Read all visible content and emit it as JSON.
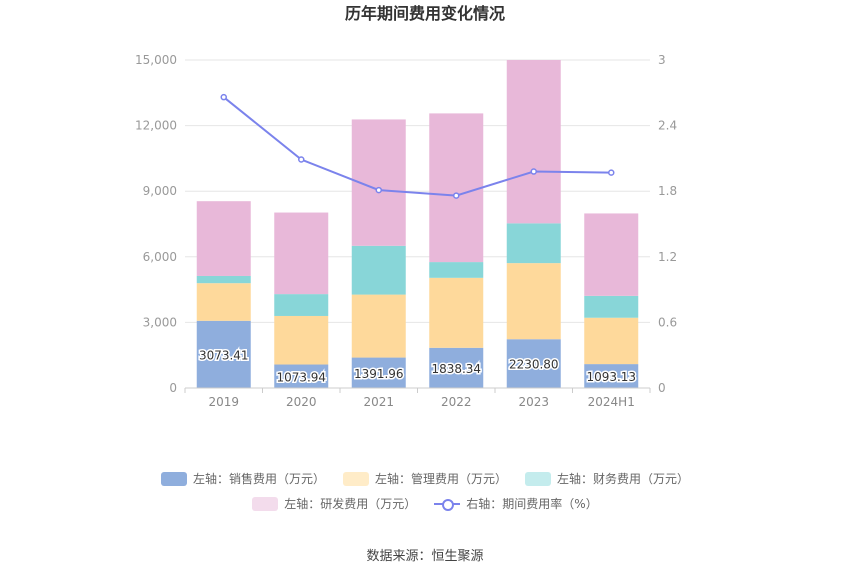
{
  "chart_data": {
    "type": "bar",
    "title": "历年期间费用变化情况",
    "categories": [
      "2019",
      "2020",
      "2021",
      "2022",
      "2023",
      "2024H1"
    ],
    "series": [
      {
        "name": "左轴：销售费用（万元）",
        "axis": "left",
        "kind": "bar",
        "color": "#8faedd",
        "values": [
          3073.41,
          1073.94,
          1391.96,
          1838.34,
          2230.8,
          1093.13
        ],
        "labels": [
          "3073.41",
          "1073.94",
          "1391.96",
          "1838.34",
          "2230.80",
          "1093.13"
        ]
      },
      {
        "name": "左轴：管理费用（万元）",
        "axis": "left",
        "kind": "bar",
        "color": "#fed99b",
        "values": [
          1720,
          2220,
          2880,
          3200,
          3480,
          2120
        ]
      },
      {
        "name": "左轴：财务费用（万元）",
        "axis": "left",
        "kind": "bar",
        "color": "#88d6d8",
        "values": [
          330,
          1000,
          2230,
          720,
          1820,
          1000
        ]
      },
      {
        "name": "左轴：研发费用（万元）",
        "axis": "left",
        "kind": "bar",
        "color": "#e8b8d9",
        "values": [
          3420,
          3730,
          5780,
          6800,
          7470,
          3770
        ]
      },
      {
        "name": "右轴：期间费用率（%）",
        "axis": "right",
        "kind": "line",
        "color": "#7b83ec",
        "values": [
          2.66,
          2.09,
          1.81,
          1.76,
          1.98,
          1.97
        ]
      }
    ],
    "left_axis": {
      "min": 0,
      "max": 15000,
      "ticks": [
        0,
        3000,
        6000,
        9000,
        12000,
        15000
      ],
      "tick_labels": [
        "0",
        "3,000",
        "6,000",
        "9,000",
        "12,000",
        "15,000"
      ]
    },
    "right_axis": {
      "min": 0,
      "max": 3,
      "ticks": [
        0,
        0.6,
        1.2,
        1.8,
        2.4,
        3
      ],
      "tick_labels": [
        "0",
        "0.6",
        "1.2",
        "1.8",
        "2.4",
        "3"
      ]
    },
    "grid": true,
    "legend_position": "bottom"
  },
  "legend_colors": {
    "sales": "#c9d7ef",
    "admin": "#ffecc8",
    "finance": "#c4eced",
    "rd": "#f3dcec"
  },
  "source": "数据来源：恒生聚源"
}
